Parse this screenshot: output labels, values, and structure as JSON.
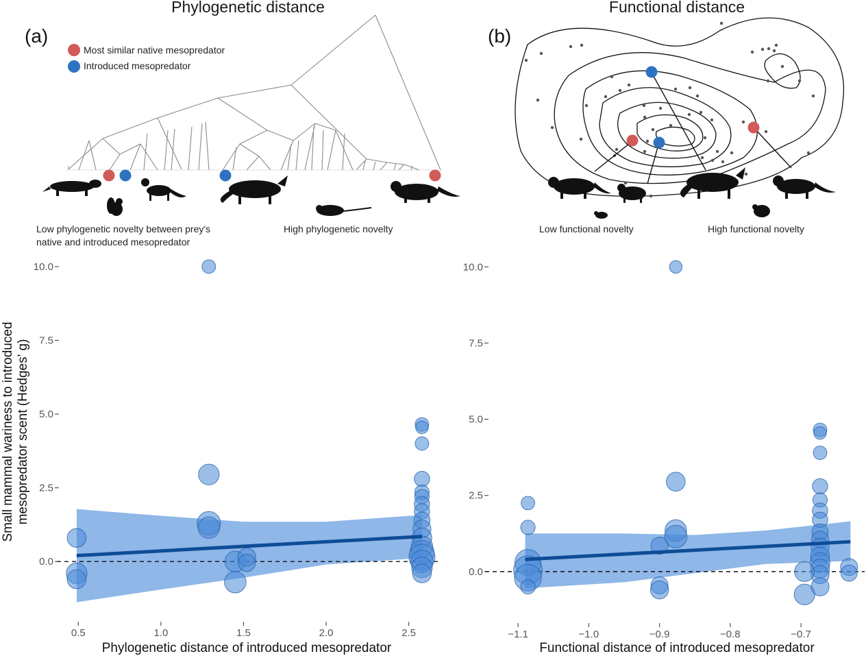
{
  "colors": {
    "native": "#d25a5a",
    "introduced": "#2f72c0",
    "bubble_fill": "#4a8ad8",
    "bubble_stroke": "#2a62a8",
    "ci_band": "#6a9fe0",
    "fit_line": "#0e4c96",
    "tree": "#8a8a8a",
    "contour": "#111111",
    "silhouette": "#111111"
  },
  "panel_a": {
    "title": "Phylogenetic distance",
    "letter": "(a)",
    "legend": {
      "native_label": "Most similar native mesopredator",
      "introduced_label": "Introduced mesopredator"
    },
    "caption_low_line1": "Low phylogenetic novelty between prey's",
    "caption_low_line2": "native and introduced mesopredator",
    "caption_high": "High phylogenetic novelty"
  },
  "panel_b": {
    "title": "Functional distance",
    "letter": "(b)",
    "caption_low": "Low functional novelty",
    "caption_high": "High functional novelty"
  },
  "y_axis_title_line1": "Small mammal wariness to introduced",
  "y_axis_title_line2": "mesopredator scent (Hedges' g)",
  "chart_data": [
    {
      "type": "scatter",
      "name": "phylogenetic",
      "xlabel": "Phylogenetic distance of introduced mesopredator",
      "ylabel": "Small mammal wariness to introduced mesopredator scent (Hedges' g)",
      "xlim": [
        0.42,
        2.68
      ],
      "ylim": [
        -1.6,
        10.3
      ],
      "x_ticks": [
        0.5,
        1.0,
        1.5,
        2.0,
        2.5
      ],
      "x_tick_labels": [
        "0.5",
        "1.0",
        "1.5",
        "2.0",
        "2.5"
      ],
      "y_ticks": [
        0.0,
        2.5,
        5.0,
        7.5,
        10.0
      ],
      "y_tick_labels": [
        "0.0",
        "2.5",
        "5.0",
        "7.5",
        "10.0"
      ],
      "reference_line_y": 0,
      "fit": {
        "x": [
          0.49,
          2.58
        ],
        "y": [
          0.2,
          0.85
        ]
      },
      "ci_band": {
        "x": [
          0.49,
          1.0,
          1.5,
          2.0,
          2.58
        ],
        "upper": [
          1.78,
          1.55,
          1.35,
          1.35,
          1.58
        ],
        "lower": [
          -1.38,
          -0.95,
          -0.55,
          -0.1,
          0.12
        ]
      },
      "points": [
        {
          "x": 0.49,
          "y": 0.8,
          "w": 1.2
        },
        {
          "x": 0.49,
          "y": -0.4,
          "w": 1.4
        },
        {
          "x": 0.49,
          "y": -0.6,
          "w": 1.2
        },
        {
          "x": 1.29,
          "y": 10.0,
          "w": 0.6
        },
        {
          "x": 1.29,
          "y": 2.95,
          "w": 1.4
        },
        {
          "x": 1.29,
          "y": 1.3,
          "w": 1.7
        },
        {
          "x": 1.29,
          "y": 1.15,
          "w": 1.5
        },
        {
          "x": 1.45,
          "y": 0.0,
          "w": 1.4
        },
        {
          "x": 1.45,
          "y": -0.7,
          "w": 1.5
        },
        {
          "x": 1.52,
          "y": 0.15,
          "w": 1.1
        },
        {
          "x": 1.52,
          "y": -0.05,
          "w": 1.0
        },
        {
          "x": 2.58,
          "y": 4.65,
          "w": 0.6
        },
        {
          "x": 2.58,
          "y": 4.55,
          "w": 0.5
        },
        {
          "x": 2.58,
          "y": 4.0,
          "w": 0.6
        },
        {
          "x": 2.58,
          "y": 2.8,
          "w": 0.8
        },
        {
          "x": 2.58,
          "y": 2.35,
          "w": 0.7
        },
        {
          "x": 2.58,
          "y": 2.2,
          "w": 0.7
        },
        {
          "x": 2.58,
          "y": 1.95,
          "w": 0.8
        },
        {
          "x": 2.58,
          "y": 1.7,
          "w": 0.8
        },
        {
          "x": 2.58,
          "y": 1.4,
          "w": 0.9
        },
        {
          "x": 2.58,
          "y": 1.1,
          "w": 1.1
        },
        {
          "x": 2.58,
          "y": 0.8,
          "w": 1.3
        },
        {
          "x": 2.58,
          "y": 0.5,
          "w": 1.5
        },
        {
          "x": 2.58,
          "y": 0.3,
          "w": 1.8
        },
        {
          "x": 2.58,
          "y": 0.15,
          "w": 2.0
        },
        {
          "x": 2.58,
          "y": 0.0,
          "w": 1.6
        },
        {
          "x": 2.58,
          "y": -0.2,
          "w": 1.4
        },
        {
          "x": 2.58,
          "y": -0.4,
          "w": 1.2
        }
      ]
    },
    {
      "type": "scatter",
      "name": "functional",
      "xlabel": "Functional distance of introduced mesopredator",
      "ylabel": "Small mammal wariness to introduced mesopredator scent (Hedges' g)",
      "xlim": [
        -1.135,
        -0.61
      ],
      "ylim": [
        -1.6,
        10.3
      ],
      "x_ticks": [
        -1.1,
        -1.0,
        -0.9,
        -0.8,
        -0.7
      ],
      "x_tick_labels": [
        "−1.1",
        "−1.0",
        "−0.9",
        "−0.8",
        "−0.7"
      ],
      "y_ticks": [
        0.0,
        2.5,
        5.0,
        7.5,
        10.0
      ],
      "y_tick_labels": [
        "0.0",
        "2.5",
        "5.0",
        "7.5",
        "10.0"
      ],
      "reference_line_y": 0,
      "fit": {
        "x": [
          -1.09,
          -0.63
        ],
        "y": [
          0.4,
          0.98
        ]
      },
      "ci_band": {
        "x": [
          -1.09,
          -0.95,
          -0.85,
          -0.75,
          -0.63
        ],
        "upper": [
          1.25,
          1.25,
          1.2,
          1.35,
          1.65
        ],
        "lower": [
          -0.55,
          -0.35,
          -0.05,
          0.25,
          0.35
        ]
      },
      "points": [
        {
          "x": -1.086,
          "y": 2.25,
          "w": 0.6
        },
        {
          "x": -1.086,
          "y": 1.45,
          "w": 0.7
        },
        {
          "x": -1.086,
          "y": 0.3,
          "w": 2.0
        },
        {
          "x": -1.086,
          "y": 0.05,
          "w": 2.3
        },
        {
          "x": -1.086,
          "y": -0.2,
          "w": 2.1
        },
        {
          "x": -1.086,
          "y": -0.5,
          "w": 0.7
        },
        {
          "x": -0.877,
          "y": 10.0,
          "w": 0.5
        },
        {
          "x": -0.877,
          "y": 2.95,
          "w": 1.2
        },
        {
          "x": -0.877,
          "y": 1.35,
          "w": 1.5
        },
        {
          "x": -0.877,
          "y": 1.15,
          "w": 1.6
        },
        {
          "x": -0.9,
          "y": 0.85,
          "w": 1.0
        },
        {
          "x": -0.9,
          "y": -0.45,
          "w": 1.0
        },
        {
          "x": -0.9,
          "y": -0.6,
          "w": 1.1
        },
        {
          "x": -0.673,
          "y": 4.65,
          "w": 0.6
        },
        {
          "x": -0.673,
          "y": 4.55,
          "w": 0.5
        },
        {
          "x": -0.673,
          "y": 3.9,
          "w": 0.6
        },
        {
          "x": -0.673,
          "y": 2.8,
          "w": 0.8
        },
        {
          "x": -0.673,
          "y": 2.35,
          "w": 0.7
        },
        {
          "x": -0.673,
          "y": 2.0,
          "w": 0.8
        },
        {
          "x": -0.673,
          "y": 1.7,
          "w": 0.8
        },
        {
          "x": -0.673,
          "y": 1.3,
          "w": 0.9
        },
        {
          "x": -0.673,
          "y": 1.05,
          "w": 1.0
        },
        {
          "x": -0.673,
          "y": 0.8,
          "w": 1.1
        },
        {
          "x": -0.673,
          "y": 0.5,
          "w": 1.2
        },
        {
          "x": -0.673,
          "y": 0.3,
          "w": 1.3
        },
        {
          "x": -0.673,
          "y": 0.1,
          "w": 1.2
        },
        {
          "x": -0.673,
          "y": -0.1,
          "w": 1.1
        },
        {
          "x": -0.673,
          "y": -0.5,
          "w": 1.1
        },
        {
          "x": -0.695,
          "y": 0.0,
          "w": 1.3
        },
        {
          "x": -0.695,
          "y": -0.75,
          "w": 1.4
        },
        {
          "x": -0.632,
          "y": 0.15,
          "w": 1.0
        },
        {
          "x": -0.632,
          "y": -0.05,
          "w": 0.9
        }
      ]
    }
  ]
}
